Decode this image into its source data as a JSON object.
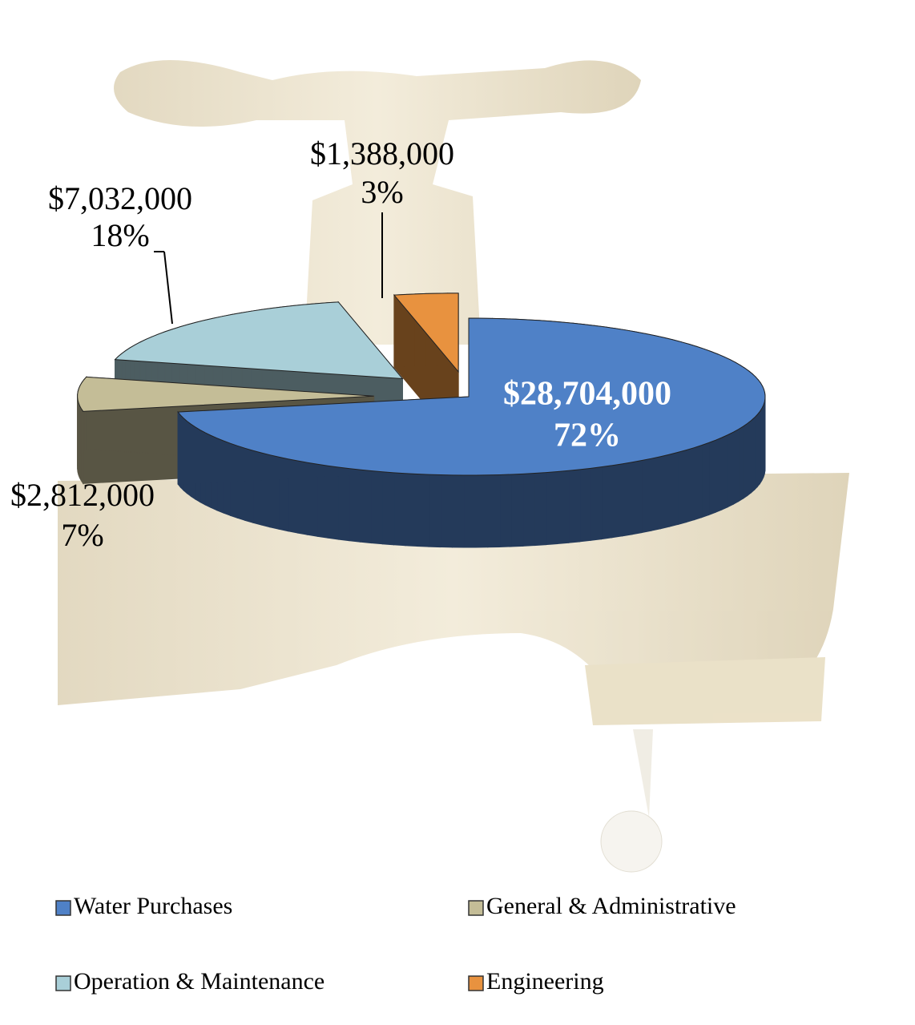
{
  "chart_data": {
    "type": "pie",
    "categories": [
      "Water Purchases",
      "General & Administrative",
      "Operation & Maintenance",
      "Engineering"
    ],
    "values": [
      28704000,
      2812000,
      7032000,
      1388000
    ],
    "value_labels": [
      "$28,704,000",
      "$2,812,000",
      "$7,032,000",
      "$1,388,000"
    ],
    "percentages": [
      72,
      7,
      18,
      3
    ],
    "percentage_labels": [
      "72%",
      "7%",
      "18%",
      "3%"
    ],
    "colors": [
      "#4f81c7",
      "#c4bd97",
      "#a9cfd8",
      "#e8923f"
    ],
    "legend": "bottom"
  }
}
